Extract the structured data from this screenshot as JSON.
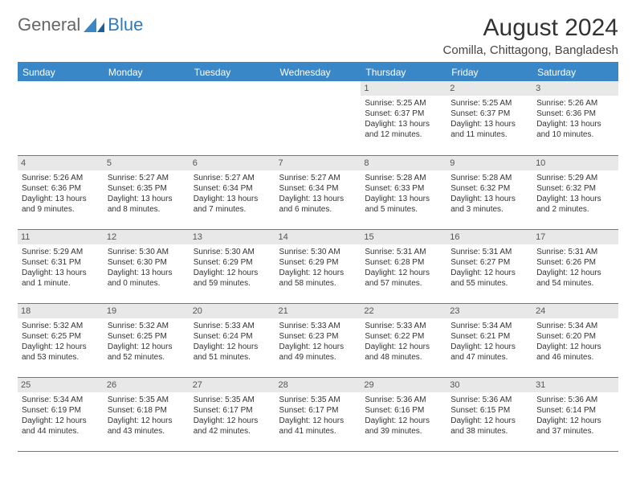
{
  "logo": {
    "part1": "General",
    "part2": "Blue"
  },
  "title": "August 2024",
  "location": "Comilla, Chittagong, Bangladesh",
  "colors": {
    "header_bg": "#3a87c8",
    "header_text": "#ffffff",
    "daynum_bg": "#e8e8e8",
    "border": "#3a87c8",
    "text": "#333333"
  },
  "weekdays": [
    "Sunday",
    "Monday",
    "Tuesday",
    "Wednesday",
    "Thursday",
    "Friday",
    "Saturday"
  ],
  "weeks": [
    [
      {
        "empty": true
      },
      {
        "empty": true
      },
      {
        "empty": true
      },
      {
        "empty": true
      },
      {
        "day": "1",
        "sunrise": "Sunrise: 5:25 AM",
        "sunset": "Sunset: 6:37 PM",
        "daylight1": "Daylight: 13 hours",
        "daylight2": "and 12 minutes."
      },
      {
        "day": "2",
        "sunrise": "Sunrise: 5:25 AM",
        "sunset": "Sunset: 6:37 PM",
        "daylight1": "Daylight: 13 hours",
        "daylight2": "and 11 minutes."
      },
      {
        "day": "3",
        "sunrise": "Sunrise: 5:26 AM",
        "sunset": "Sunset: 6:36 PM",
        "daylight1": "Daylight: 13 hours",
        "daylight2": "and 10 minutes."
      }
    ],
    [
      {
        "day": "4",
        "sunrise": "Sunrise: 5:26 AM",
        "sunset": "Sunset: 6:36 PM",
        "daylight1": "Daylight: 13 hours",
        "daylight2": "and 9 minutes."
      },
      {
        "day": "5",
        "sunrise": "Sunrise: 5:27 AM",
        "sunset": "Sunset: 6:35 PM",
        "daylight1": "Daylight: 13 hours",
        "daylight2": "and 8 minutes."
      },
      {
        "day": "6",
        "sunrise": "Sunrise: 5:27 AM",
        "sunset": "Sunset: 6:34 PM",
        "daylight1": "Daylight: 13 hours",
        "daylight2": "and 7 minutes."
      },
      {
        "day": "7",
        "sunrise": "Sunrise: 5:27 AM",
        "sunset": "Sunset: 6:34 PM",
        "daylight1": "Daylight: 13 hours",
        "daylight2": "and 6 minutes."
      },
      {
        "day": "8",
        "sunrise": "Sunrise: 5:28 AM",
        "sunset": "Sunset: 6:33 PM",
        "daylight1": "Daylight: 13 hours",
        "daylight2": "and 5 minutes."
      },
      {
        "day": "9",
        "sunrise": "Sunrise: 5:28 AM",
        "sunset": "Sunset: 6:32 PM",
        "daylight1": "Daylight: 13 hours",
        "daylight2": "and 3 minutes."
      },
      {
        "day": "10",
        "sunrise": "Sunrise: 5:29 AM",
        "sunset": "Sunset: 6:32 PM",
        "daylight1": "Daylight: 13 hours",
        "daylight2": "and 2 minutes."
      }
    ],
    [
      {
        "day": "11",
        "sunrise": "Sunrise: 5:29 AM",
        "sunset": "Sunset: 6:31 PM",
        "daylight1": "Daylight: 13 hours",
        "daylight2": "and 1 minute."
      },
      {
        "day": "12",
        "sunrise": "Sunrise: 5:30 AM",
        "sunset": "Sunset: 6:30 PM",
        "daylight1": "Daylight: 13 hours",
        "daylight2": "and 0 minutes."
      },
      {
        "day": "13",
        "sunrise": "Sunrise: 5:30 AM",
        "sunset": "Sunset: 6:29 PM",
        "daylight1": "Daylight: 12 hours",
        "daylight2": "and 59 minutes."
      },
      {
        "day": "14",
        "sunrise": "Sunrise: 5:30 AM",
        "sunset": "Sunset: 6:29 PM",
        "daylight1": "Daylight: 12 hours",
        "daylight2": "and 58 minutes."
      },
      {
        "day": "15",
        "sunrise": "Sunrise: 5:31 AM",
        "sunset": "Sunset: 6:28 PM",
        "daylight1": "Daylight: 12 hours",
        "daylight2": "and 57 minutes."
      },
      {
        "day": "16",
        "sunrise": "Sunrise: 5:31 AM",
        "sunset": "Sunset: 6:27 PM",
        "daylight1": "Daylight: 12 hours",
        "daylight2": "and 55 minutes."
      },
      {
        "day": "17",
        "sunrise": "Sunrise: 5:31 AM",
        "sunset": "Sunset: 6:26 PM",
        "daylight1": "Daylight: 12 hours",
        "daylight2": "and 54 minutes."
      }
    ],
    [
      {
        "day": "18",
        "sunrise": "Sunrise: 5:32 AM",
        "sunset": "Sunset: 6:25 PM",
        "daylight1": "Daylight: 12 hours",
        "daylight2": "and 53 minutes."
      },
      {
        "day": "19",
        "sunrise": "Sunrise: 5:32 AM",
        "sunset": "Sunset: 6:25 PM",
        "daylight1": "Daylight: 12 hours",
        "daylight2": "and 52 minutes."
      },
      {
        "day": "20",
        "sunrise": "Sunrise: 5:33 AM",
        "sunset": "Sunset: 6:24 PM",
        "daylight1": "Daylight: 12 hours",
        "daylight2": "and 51 minutes."
      },
      {
        "day": "21",
        "sunrise": "Sunrise: 5:33 AM",
        "sunset": "Sunset: 6:23 PM",
        "daylight1": "Daylight: 12 hours",
        "daylight2": "and 49 minutes."
      },
      {
        "day": "22",
        "sunrise": "Sunrise: 5:33 AM",
        "sunset": "Sunset: 6:22 PM",
        "daylight1": "Daylight: 12 hours",
        "daylight2": "and 48 minutes."
      },
      {
        "day": "23",
        "sunrise": "Sunrise: 5:34 AM",
        "sunset": "Sunset: 6:21 PM",
        "daylight1": "Daylight: 12 hours",
        "daylight2": "and 47 minutes."
      },
      {
        "day": "24",
        "sunrise": "Sunrise: 5:34 AM",
        "sunset": "Sunset: 6:20 PM",
        "daylight1": "Daylight: 12 hours",
        "daylight2": "and 46 minutes."
      }
    ],
    [
      {
        "day": "25",
        "sunrise": "Sunrise: 5:34 AM",
        "sunset": "Sunset: 6:19 PM",
        "daylight1": "Daylight: 12 hours",
        "daylight2": "and 44 minutes."
      },
      {
        "day": "26",
        "sunrise": "Sunrise: 5:35 AM",
        "sunset": "Sunset: 6:18 PM",
        "daylight1": "Daylight: 12 hours",
        "daylight2": "and 43 minutes."
      },
      {
        "day": "27",
        "sunrise": "Sunrise: 5:35 AM",
        "sunset": "Sunset: 6:17 PM",
        "daylight1": "Daylight: 12 hours",
        "daylight2": "and 42 minutes."
      },
      {
        "day": "28",
        "sunrise": "Sunrise: 5:35 AM",
        "sunset": "Sunset: 6:17 PM",
        "daylight1": "Daylight: 12 hours",
        "daylight2": "and 41 minutes."
      },
      {
        "day": "29",
        "sunrise": "Sunrise: 5:36 AM",
        "sunset": "Sunset: 6:16 PM",
        "daylight1": "Daylight: 12 hours",
        "daylight2": "and 39 minutes."
      },
      {
        "day": "30",
        "sunrise": "Sunrise: 5:36 AM",
        "sunset": "Sunset: 6:15 PM",
        "daylight1": "Daylight: 12 hours",
        "daylight2": "and 38 minutes."
      },
      {
        "day": "31",
        "sunrise": "Sunrise: 5:36 AM",
        "sunset": "Sunset: 6:14 PM",
        "daylight1": "Daylight: 12 hours",
        "daylight2": "and 37 minutes."
      }
    ]
  ]
}
